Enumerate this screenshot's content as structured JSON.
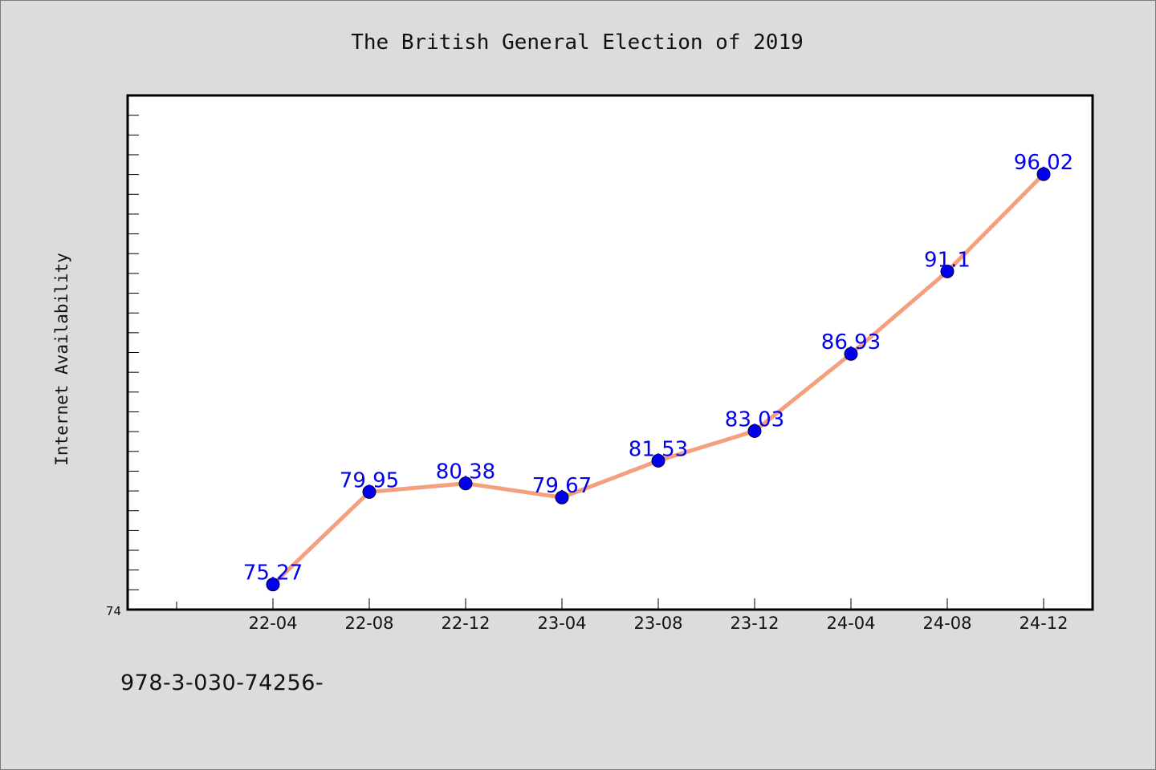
{
  "footer_text": "978-3-030-74256-",
  "chart_data": {
    "type": "line",
    "title": "The British General Election of 2019",
    "xlabel": "",
    "ylabel": "Internet Availability",
    "categories": [
      "22-04",
      "22-08",
      "22-12",
      "23-04",
      "23-08",
      "23-12",
      "24-04",
      "24-08",
      "24-12"
    ],
    "series": [
      {
        "values": [
          75.27,
          79.95,
          80.38,
          79.67,
          81.53,
          83.03,
          86.93,
          91.1,
          96.02
        ],
        "data_labels": [
          "75.27",
          "79.95",
          "80.38",
          "79.67",
          "81.53",
          "83.03",
          "86.93",
          "91.1",
          "96.02"
        ]
      }
    ],
    "ylim": [
      74,
      100
    ],
    "y_tick_labels": [
      "74"
    ],
    "grid": false,
    "line_color": "#f4a07e",
    "marker_color": "#0000ee",
    "label_color": "#0000ee"
  }
}
